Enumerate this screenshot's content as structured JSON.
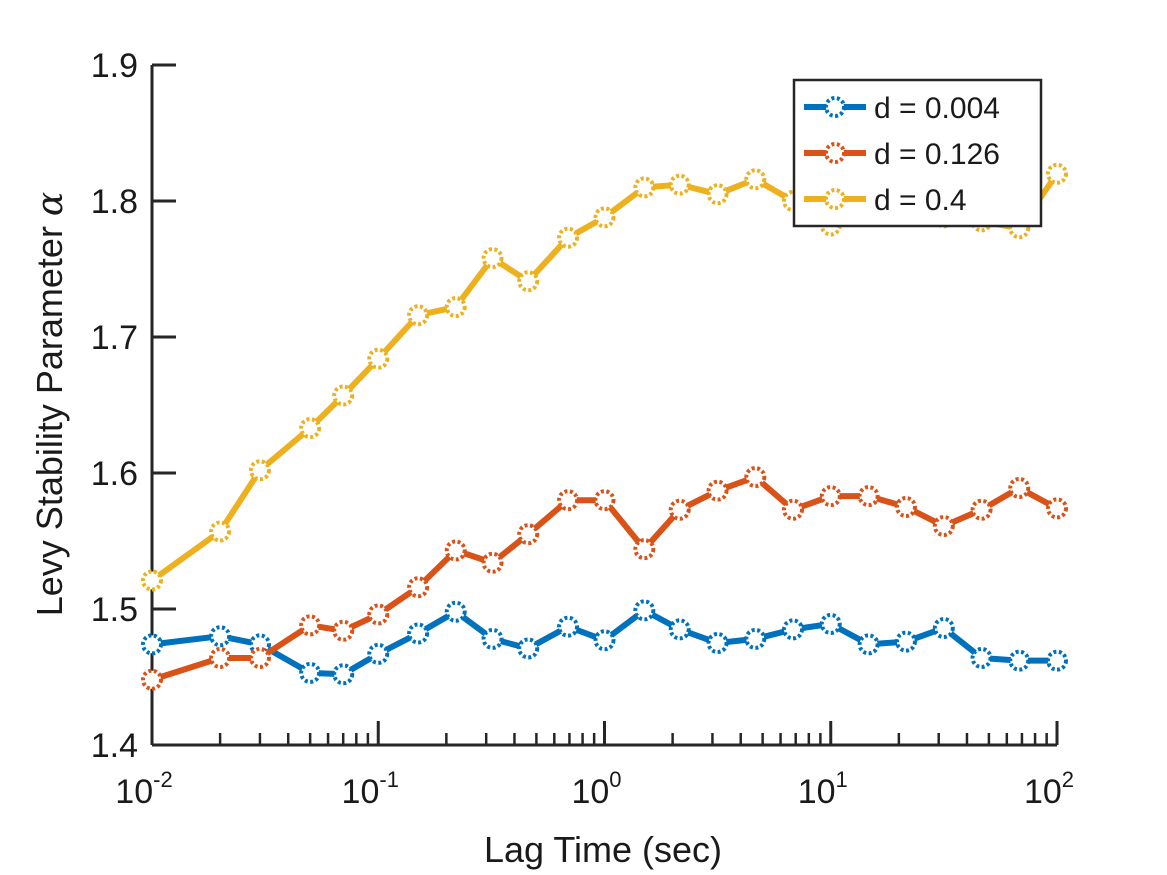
{
  "chart_data": {
    "type": "line",
    "xlabel": "Lag Time (sec)",
    "ylabel": "Levy Stability Parameter",
    "ylabel_symbol": "α",
    "xscale": "log",
    "xlim": [
      0.01,
      100
    ],
    "ylim": [
      1.4,
      1.9
    ],
    "grid": false,
    "legend_position": "top-right",
    "x_ticks": [
      {
        "base": "10",
        "exp": "-2",
        "value": 0.01
      },
      {
        "base": "10",
        "exp": "-1",
        "value": 0.1
      },
      {
        "base": "10",
        "exp": "0",
        "value": 1
      },
      {
        "base": "10",
        "exp": "1",
        "value": 10
      },
      {
        "base": "10",
        "exp": "2",
        "value": 100
      }
    ],
    "y_ticks": [
      "1.4",
      "1.5",
      "1.6",
      "1.7",
      "1.8",
      "1.9"
    ],
    "x": [
      0.01,
      0.02,
      0.03,
      0.05,
      0.07,
      0.1,
      0.15,
      0.22,
      0.32,
      0.46,
      0.69,
      1.0,
      1.5,
      2.15,
      3.16,
      4.64,
      6.81,
      10.0,
      14.7,
      21.5,
      31.6,
      46.4,
      68.1,
      100
    ],
    "series": [
      {
        "name": "d = 0.004",
        "color": "#0072BD",
        "values": [
          1.474,
          1.48,
          1.474,
          1.453,
          1.452,
          1.467,
          1.482,
          1.498,
          1.478,
          1.471,
          1.487,
          1.477,
          1.499,
          1.485,
          1.475,
          1.478,
          1.485,
          1.489,
          1.474,
          1.476,
          1.486,
          1.464,
          1.462,
          1.462
        ]
      },
      {
        "name": "d = 0.126",
        "color": "#D95319",
        "values": [
          1.448,
          1.464,
          1.464,
          1.488,
          1.484,
          1.496,
          1.516,
          1.543,
          1.534,
          1.555,
          1.58,
          1.58,
          1.544,
          1.573,
          1.587,
          1.597,
          1.573,
          1.583,
          1.583,
          1.575,
          1.561,
          1.573,
          1.589,
          1.574
        ]
      },
      {
        "name": "d = 0.4",
        "color": "#EDB120",
        "values": [
          1.521,
          1.557,
          1.602,
          1.633,
          1.657,
          1.684,
          1.716,
          1.722,
          1.758,
          1.741,
          1.773,
          1.788,
          1.81,
          1.812,
          1.805,
          1.816,
          1.8,
          1.782,
          1.79,
          1.797,
          1.788,
          1.785,
          1.78,
          1.82
        ]
      }
    ]
  }
}
